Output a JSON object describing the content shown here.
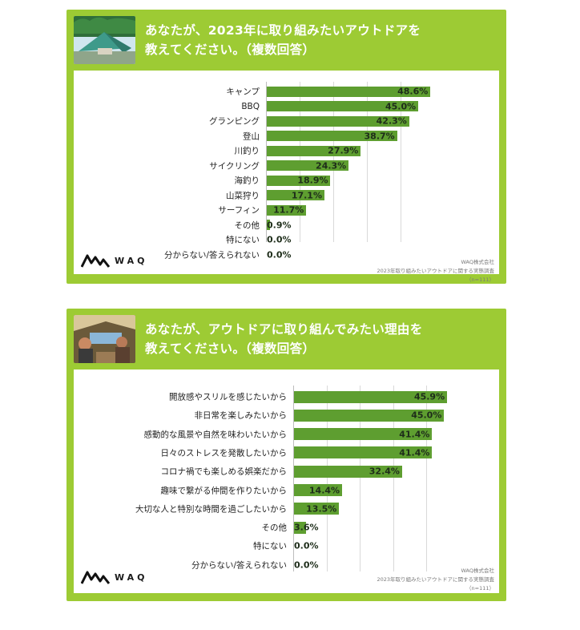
{
  "colors": {
    "panel": "#9dcb34",
    "bar": "#5e9e30",
    "text": "#1e2d1a"
  },
  "logo": {
    "text": "WAQ",
    "icon": "waq-mountain-logo-icon"
  },
  "chart_data": [
    {
      "type": "bar",
      "orientation": "horizontal",
      "title": "あなたが、2023年に取り組みたいアウトドアを\n教えてください。（複数回答）",
      "categories": [
        "キャンプ",
        "BBQ",
        "グランピング",
        "登山",
        "川釣り",
        "サイクリング",
        "海釣り",
        "山菜狩り",
        "サーフィン",
        "その他",
        "特にない",
        "分からない/答えられない"
      ],
      "values": [
        48.6,
        45.0,
        42.3,
        38.7,
        27.9,
        24.3,
        18.9,
        17.1,
        11.7,
        0.9,
        0.0,
        0.0
      ],
      "value_labels": [
        "48.6%",
        "45.0%",
        "42.3%",
        "38.7%",
        "27.9%",
        "24.3%",
        "18.9%",
        "17.1%",
        "11.7%",
        "0.9%",
        "0.0%",
        "0.0%"
      ],
      "xlim": [
        0,
        50
      ],
      "grid": true,
      "source": {
        "company": "WAQ株式会社",
        "survey": "2023年取り組みたいアウトドアに関する実態調査",
        "n": "（n=111）"
      }
    },
    {
      "type": "bar",
      "orientation": "horizontal",
      "title": "あなたが、アウトドアに取り組んでみたい理由を\n教えてください。（複数回答）",
      "categories": [
        "開放感やスリルを感じたいから",
        "非日常を楽しみたいから",
        "感動的な風景や自然を味わいたいから",
        "日々のストレスを発散したいから",
        "コロナ禍でも楽しめる娯楽だから",
        "趣味で繋がる仲間を作りたいから",
        "大切な人と特別な時間を過ごしたいから",
        "その他",
        "特にない",
        "分からない/答えられない"
      ],
      "values": [
        45.9,
        45.0,
        41.4,
        41.4,
        32.4,
        14.4,
        13.5,
        3.6,
        0.0,
        0.0
      ],
      "value_labels": [
        "45.9%",
        "45.0%",
        "41.4%",
        "41.4%",
        "32.4%",
        "14.4%",
        "13.5%",
        "3.6%",
        "0.0%",
        "0.0%"
      ],
      "xlim": [
        0,
        50
      ],
      "grid": true,
      "source": {
        "company": "WAQ株式会社",
        "survey": "2023年取り組みたいアウトドアに関する実態調査",
        "n": "（n=111）"
      }
    }
  ]
}
